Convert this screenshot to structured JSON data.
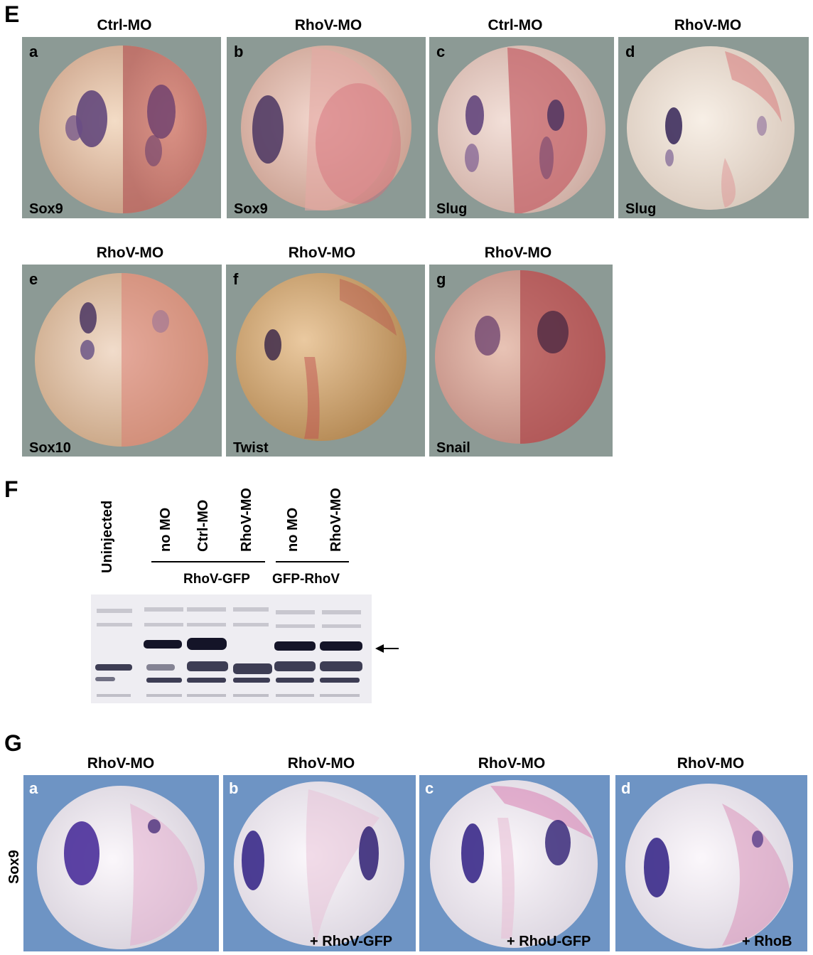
{
  "section_E": {
    "letter": "E",
    "row1_titles": [
      "Ctrl-MO",
      "RhoV-MO",
      "Ctrl-MO",
      "RhoV-MO"
    ],
    "row1_letters": [
      "a",
      "b",
      "c",
      "d"
    ],
    "row1_genes": [
      "Sox9",
      "Sox9",
      "Slug",
      "Slug"
    ],
    "row2_titles": [
      "RhoV-MO",
      "RhoV-MO",
      "RhoV-MO"
    ],
    "row2_letters": [
      "e",
      "f",
      "g"
    ],
    "row2_genes": [
      "Sox10",
      "Twist",
      "Snail"
    ]
  },
  "section_F": {
    "letter": "F",
    "lanes": [
      "Uninjected",
      "no MO",
      "Ctrl-MO",
      "RhoV-MO",
      "no MO",
      "RhoV-MO"
    ],
    "groups": [
      "RhoV-GFP",
      "GFP-RhoV"
    ],
    "arrow_icon": "arrow-left-icon"
  },
  "section_G": {
    "letter": "G",
    "row_label": "Sox9",
    "titles": [
      "RhoV-MO",
      "RhoV-MO",
      "RhoV-MO",
      "RhoV-MO"
    ],
    "letters": [
      "a",
      "b",
      "c",
      "d"
    ],
    "rescues": [
      "+ RhoV-GFP",
      "+ RhoU-GFP",
      "+ RhoB"
    ]
  }
}
